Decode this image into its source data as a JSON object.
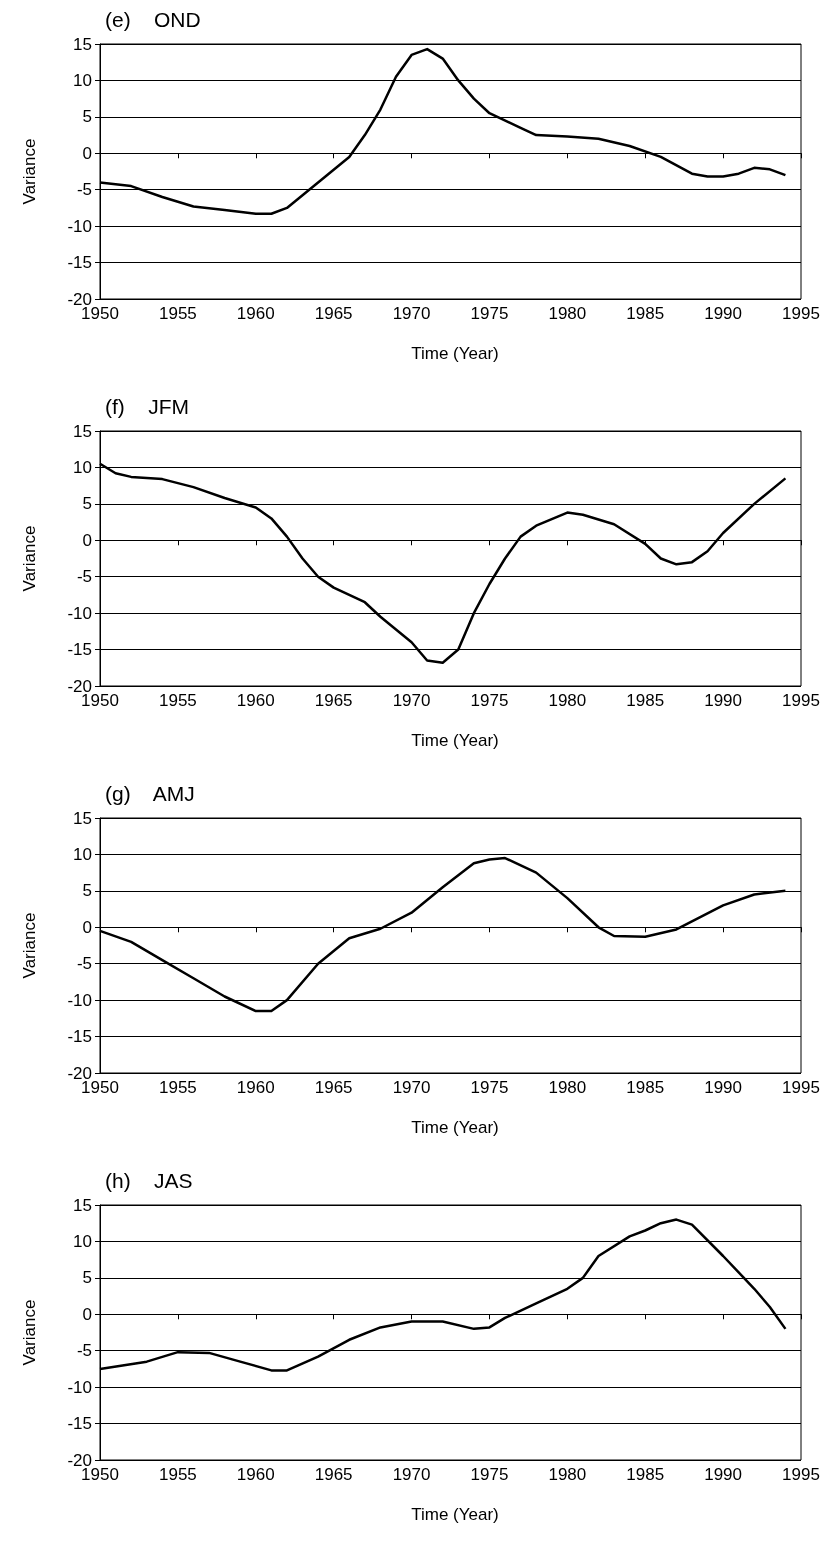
{
  "chart_data": [
    {
      "type": "line",
      "title": "(e)    OND",
      "xlabel": "Time (Year)",
      "ylabel": "Variance",
      "xlim": [
        1950,
        1995
      ],
      "xticks": [
        1950,
        1955,
        1960,
        1965,
        1970,
        1975,
        1980,
        1985,
        1990,
        1995
      ],
      "ylim": [
        -20,
        15
      ],
      "yticks": [
        -20,
        -15,
        -10,
        -5,
        0,
        5,
        10,
        15
      ],
      "grid": "y",
      "marker": "none",
      "line_style": "solid",
      "series": [
        {
          "color": "#000000",
          "x": [
            1950,
            1952,
            1954,
            1956,
            1958,
            1960,
            1961,
            1962,
            1964,
            1966,
            1967,
            1968,
            1969,
            1970,
            1971,
            1972,
            1973,
            1974,
            1975,
            1977,
            1978,
            1980,
            1982,
            1984,
            1986,
            1988,
            1989,
            1990,
            1991,
            1992,
            1993,
            1994
          ],
          "values": [
            -4,
            -4.5,
            -6,
            -7.3,
            -7.8,
            -8.3,
            -8.3,
            -7.5,
            -4,
            -0.5,
            2.5,
            6,
            10.5,
            13.5,
            14.3,
            13,
            10,
            7.5,
            5.5,
            3.5,
            2.5,
            2.3,
            2,
            1,
            -0.5,
            -2.8,
            -3.2,
            -3.2,
            -2.8,
            -2,
            -2.2,
            -3
          ]
        }
      ]
    },
    {
      "type": "line",
      "title": "(f)    JFM",
      "xlabel": "Time (Year)",
      "ylabel": "Variance",
      "xlim": [
        1950,
        1995
      ],
      "xticks": [
        1950,
        1955,
        1960,
        1965,
        1970,
        1975,
        1980,
        1985,
        1990,
        1995
      ],
      "ylim": [
        -20,
        15
      ],
      "yticks": [
        -20,
        -15,
        -10,
        -5,
        0,
        5,
        10,
        15
      ],
      "grid": "y",
      "marker": "none",
      "line_style": "solid",
      "series": [
        {
          "color": "#000000",
          "x": [
            1950,
            1951,
            1952,
            1954,
            1956,
            1958,
            1960,
            1961,
            1962,
            1963,
            1964,
            1965,
            1967,
            1968,
            1970,
            1971,
            1972,
            1973,
            1974,
            1975,
            1976,
            1977,
            1978,
            1980,
            1981,
            1983,
            1985,
            1986,
            1987,
            1988,
            1989,
            1990,
            1992,
            1994
          ],
          "values": [
            10.5,
            9.2,
            8.7,
            8.4,
            7.3,
            5.8,
            4.5,
            3,
            0.5,
            -2.5,
            -5,
            -6.5,
            -8.5,
            -10.5,
            -14,
            -16.5,
            -16.8,
            -15,
            -10,
            -6,
            -2.5,
            0.5,
            2,
            3.8,
            3.5,
            2.2,
            -0.5,
            -2.5,
            -3.3,
            -3,
            -1.5,
            1,
            5,
            8.5
          ]
        }
      ]
    },
    {
      "type": "line",
      "title": "(g)    AMJ",
      "xlabel": "Time (Year)",
      "ylabel": "Variance",
      "xlim": [
        1950,
        1995
      ],
      "xticks": [
        1950,
        1955,
        1960,
        1965,
        1970,
        1975,
        1980,
        1985,
        1990,
        1995
      ],
      "ylim": [
        -20,
        15
      ],
      "yticks": [
        -20,
        -15,
        -10,
        -5,
        0,
        5,
        10,
        15
      ],
      "grid": "y",
      "marker": "none",
      "line_style": "solid",
      "series": [
        {
          "color": "#000000",
          "x": [
            1950,
            1952,
            1954,
            1956,
            1958,
            1960,
            1961,
            1962,
            1964,
            1966,
            1968,
            1970,
            1972,
            1974,
            1975,
            1976,
            1978,
            1980,
            1982,
            1983,
            1985,
            1987,
            1988,
            1990,
            1992,
            1994
          ],
          "values": [
            -0.5,
            -2,
            -4.5,
            -7,
            -9.5,
            -11.5,
            -11.5,
            -10,
            -5,
            -1.5,
            -0.2,
            2,
            5.5,
            8.8,
            9.3,
            9.5,
            7.5,
            4,
            0,
            -1.2,
            -1.3,
            -0.3,
            0.8,
            3,
            4.5,
            5
          ]
        }
      ]
    },
    {
      "type": "line",
      "title": "(h)    JAS",
      "xlabel": "Time (Year)",
      "ylabel": "Variance",
      "xlim": [
        1950,
        1995
      ],
      "xticks": [
        1950,
        1955,
        1960,
        1965,
        1970,
        1975,
        1980,
        1985,
        1990,
        1995
      ],
      "ylim": [
        -20,
        15
      ],
      "yticks": [
        -20,
        -15,
        -10,
        -5,
        0,
        5,
        10,
        15
      ],
      "grid": "y",
      "marker": "none",
      "line_style": "solid",
      "series": [
        {
          "color": "#000000",
          "x": [
            1950,
            1953,
            1955,
            1957,
            1959,
            1961,
            1962,
            1964,
            1966,
            1968,
            1970,
            1972,
            1974,
            1975,
            1976,
            1978,
            1980,
            1981,
            1982,
            1984,
            1985,
            1986,
            1987,
            1988,
            1990,
            1992,
            1993,
            1994
          ],
          "values": [
            -7.5,
            -6.5,
            -5.2,
            -5.3,
            -6.5,
            -7.7,
            -7.7,
            -5.8,
            -3.5,
            -1.8,
            -1,
            -1,
            -2,
            -1.8,
            -0.5,
            1.5,
            3.5,
            5,
            8,
            10.7,
            11.5,
            12.5,
            13,
            12.3,
            8,
            3.5,
            1,
            -2
          ]
        }
      ]
    }
  ]
}
